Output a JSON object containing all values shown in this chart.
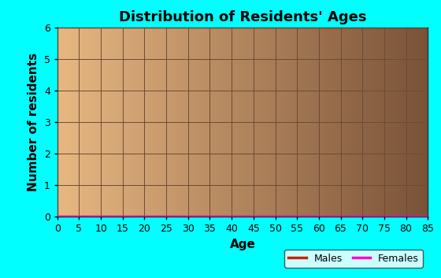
{
  "title": "Distribution of Residents' Ages",
  "xlabel": "Age",
  "ylabel": "Number of residents",
  "xlim": [
    0,
    85
  ],
  "ylim": [
    0,
    6
  ],
  "xticks": [
    0,
    5,
    10,
    15,
    20,
    25,
    30,
    35,
    40,
    45,
    50,
    55,
    60,
    65,
    70,
    75,
    80,
    85
  ],
  "yticks": [
    0,
    1,
    2,
    3,
    4,
    5,
    6
  ],
  "bg_color": "#00ffff",
  "gradient_left": "#e8b882",
  "gradient_right": "#7a5238",
  "grid_color": "#6b4c35",
  "males_color": "#cc2200",
  "females_color": "#ff00cc",
  "males_data_x": [
    0,
    85
  ],
  "males_data_y": [
    0,
    0
  ],
  "females_data_x": [
    0,
    85
  ],
  "females_data_y": [
    0,
    0
  ],
  "legend_labels": [
    "Males",
    "Females"
  ],
  "title_fontsize": 13,
  "axis_label_fontsize": 11,
  "tick_fontsize": 9
}
